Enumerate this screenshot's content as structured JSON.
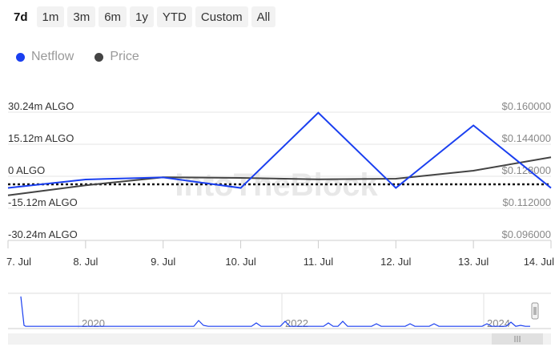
{
  "range_selector": {
    "buttons": [
      "7d",
      "1m",
      "3m",
      "6m",
      "1y",
      "YTD",
      "Custom",
      "All"
    ],
    "active": "7d"
  },
  "colors": {
    "netflow": "#1a3ff0",
    "price": "#444444",
    "grid": "#e6e6e6",
    "axis_text_left": "#333333",
    "axis_text_right": "#888888",
    "navigator": "#1a3ff0"
  },
  "watermark": "IntoTheBlock",
  "chart_data": {
    "type": "line",
    "x": [
      "7. Jul",
      "8. Jul",
      "9. Jul",
      "10. Jul",
      "11. Jul",
      "12. Jul",
      "13. Jul",
      "14. Jul"
    ],
    "series": [
      {
        "name": "Netflow",
        "axis": "left",
        "unit": "ALGO",
        "values": [
          -5.5,
          -1.5,
          -0.5,
          -5.5,
          30.0,
          -5.5,
          24.0,
          -5.5
        ]
      },
      {
        "name": "Price",
        "axis": "right",
        "values": [
          0.1185,
          0.1235,
          0.1275,
          0.1272,
          0.1265,
          0.1268,
          0.1308,
          0.1375
        ]
      }
    ],
    "left_axis": {
      "ticks": [
        "30.24m ALGO",
        "15.12m ALGO",
        "0 ALGO",
        "-15.12m ALGO",
        "-30.24m ALGO"
      ],
      "tick_values": [
        30.24,
        15.12,
        0,
        -15.12,
        -30.24
      ],
      "range": [
        -30.24,
        30.24
      ]
    },
    "right_axis": {
      "ticks": [
        "$0.160000",
        "$0.144000",
        "$0.128000",
        "$0.112000",
        "$0.096000"
      ],
      "tick_values": [
        0.16,
        0.144,
        0.128,
        0.112,
        0.096
      ],
      "range": [
        0.096,
        0.16
      ]
    },
    "zero_line": "dotted",
    "grid": true,
    "legend": "top-left"
  },
  "navigator": {
    "year_labels": [
      "2020",
      "2022",
      "2024"
    ]
  }
}
